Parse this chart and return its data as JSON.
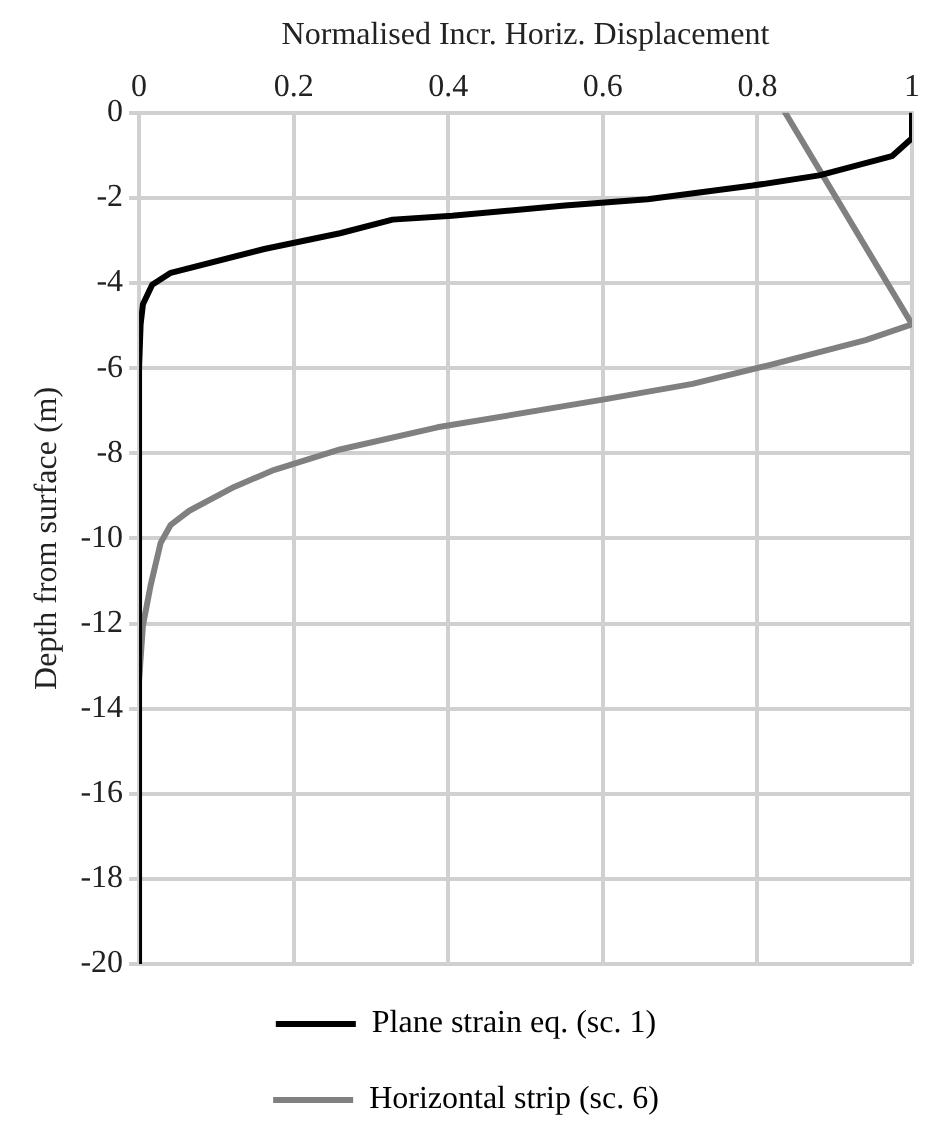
{
  "chart_data": {
    "type": "line",
    "xlabel": "Normalised Incr. Horiz. Displacement",
    "ylabel": "Depth from surface (m)",
    "xlim": [
      0,
      1
    ],
    "xticks": [
      0,
      0.2,
      0.4,
      0.6,
      0.8,
      1
    ],
    "ylim": [
      -20,
      0
    ],
    "yticks": [
      -20,
      -18,
      -16,
      -14,
      -12,
      -10,
      -8,
      -6,
      -4,
      -2,
      0
    ],
    "grid": true,
    "legend": "bottom",
    "marker": "none",
    "line_style": "solid",
    "series": [
      {
        "name": "Plane strain eq. (sc. 1)",
        "color": "#000000",
        "x": [
          1,
          1,
          0.974,
          0.88,
          0.794,
          0.658,
          0.551,
          0.405,
          0.328,
          0.26,
          0.162,
          0.041,
          0.017,
          0.005,
          0.002,
          0,
          0
        ],
        "values": [
          0,
          -0.6,
          -1.02,
          -1.47,
          -1.71,
          -2.03,
          -2.18,
          -2.42,
          -2.51,
          -2.83,
          -3.2,
          -3.76,
          -4.04,
          -4.5,
          -4.97,
          -6,
          -20
        ]
      },
      {
        "name": "Horizontal strip (sc. 6)",
        "color": "#808080",
        "x": [
          0.836,
          1,
          0.94,
          0.813,
          0.716,
          0.6,
          0.386,
          0.26,
          0.172,
          0.123,
          0.065,
          0.041,
          0.028,
          0.015,
          0.005,
          0
        ],
        "values": [
          0,
          -4.97,
          -5.34,
          -5.94,
          -6.37,
          -6.74,
          -7.39,
          -7.91,
          -8.41,
          -8.79,
          -9.35,
          -9.68,
          -10.1,
          -11.1,
          -12.05,
          -13.35
        ]
      }
    ]
  }
}
